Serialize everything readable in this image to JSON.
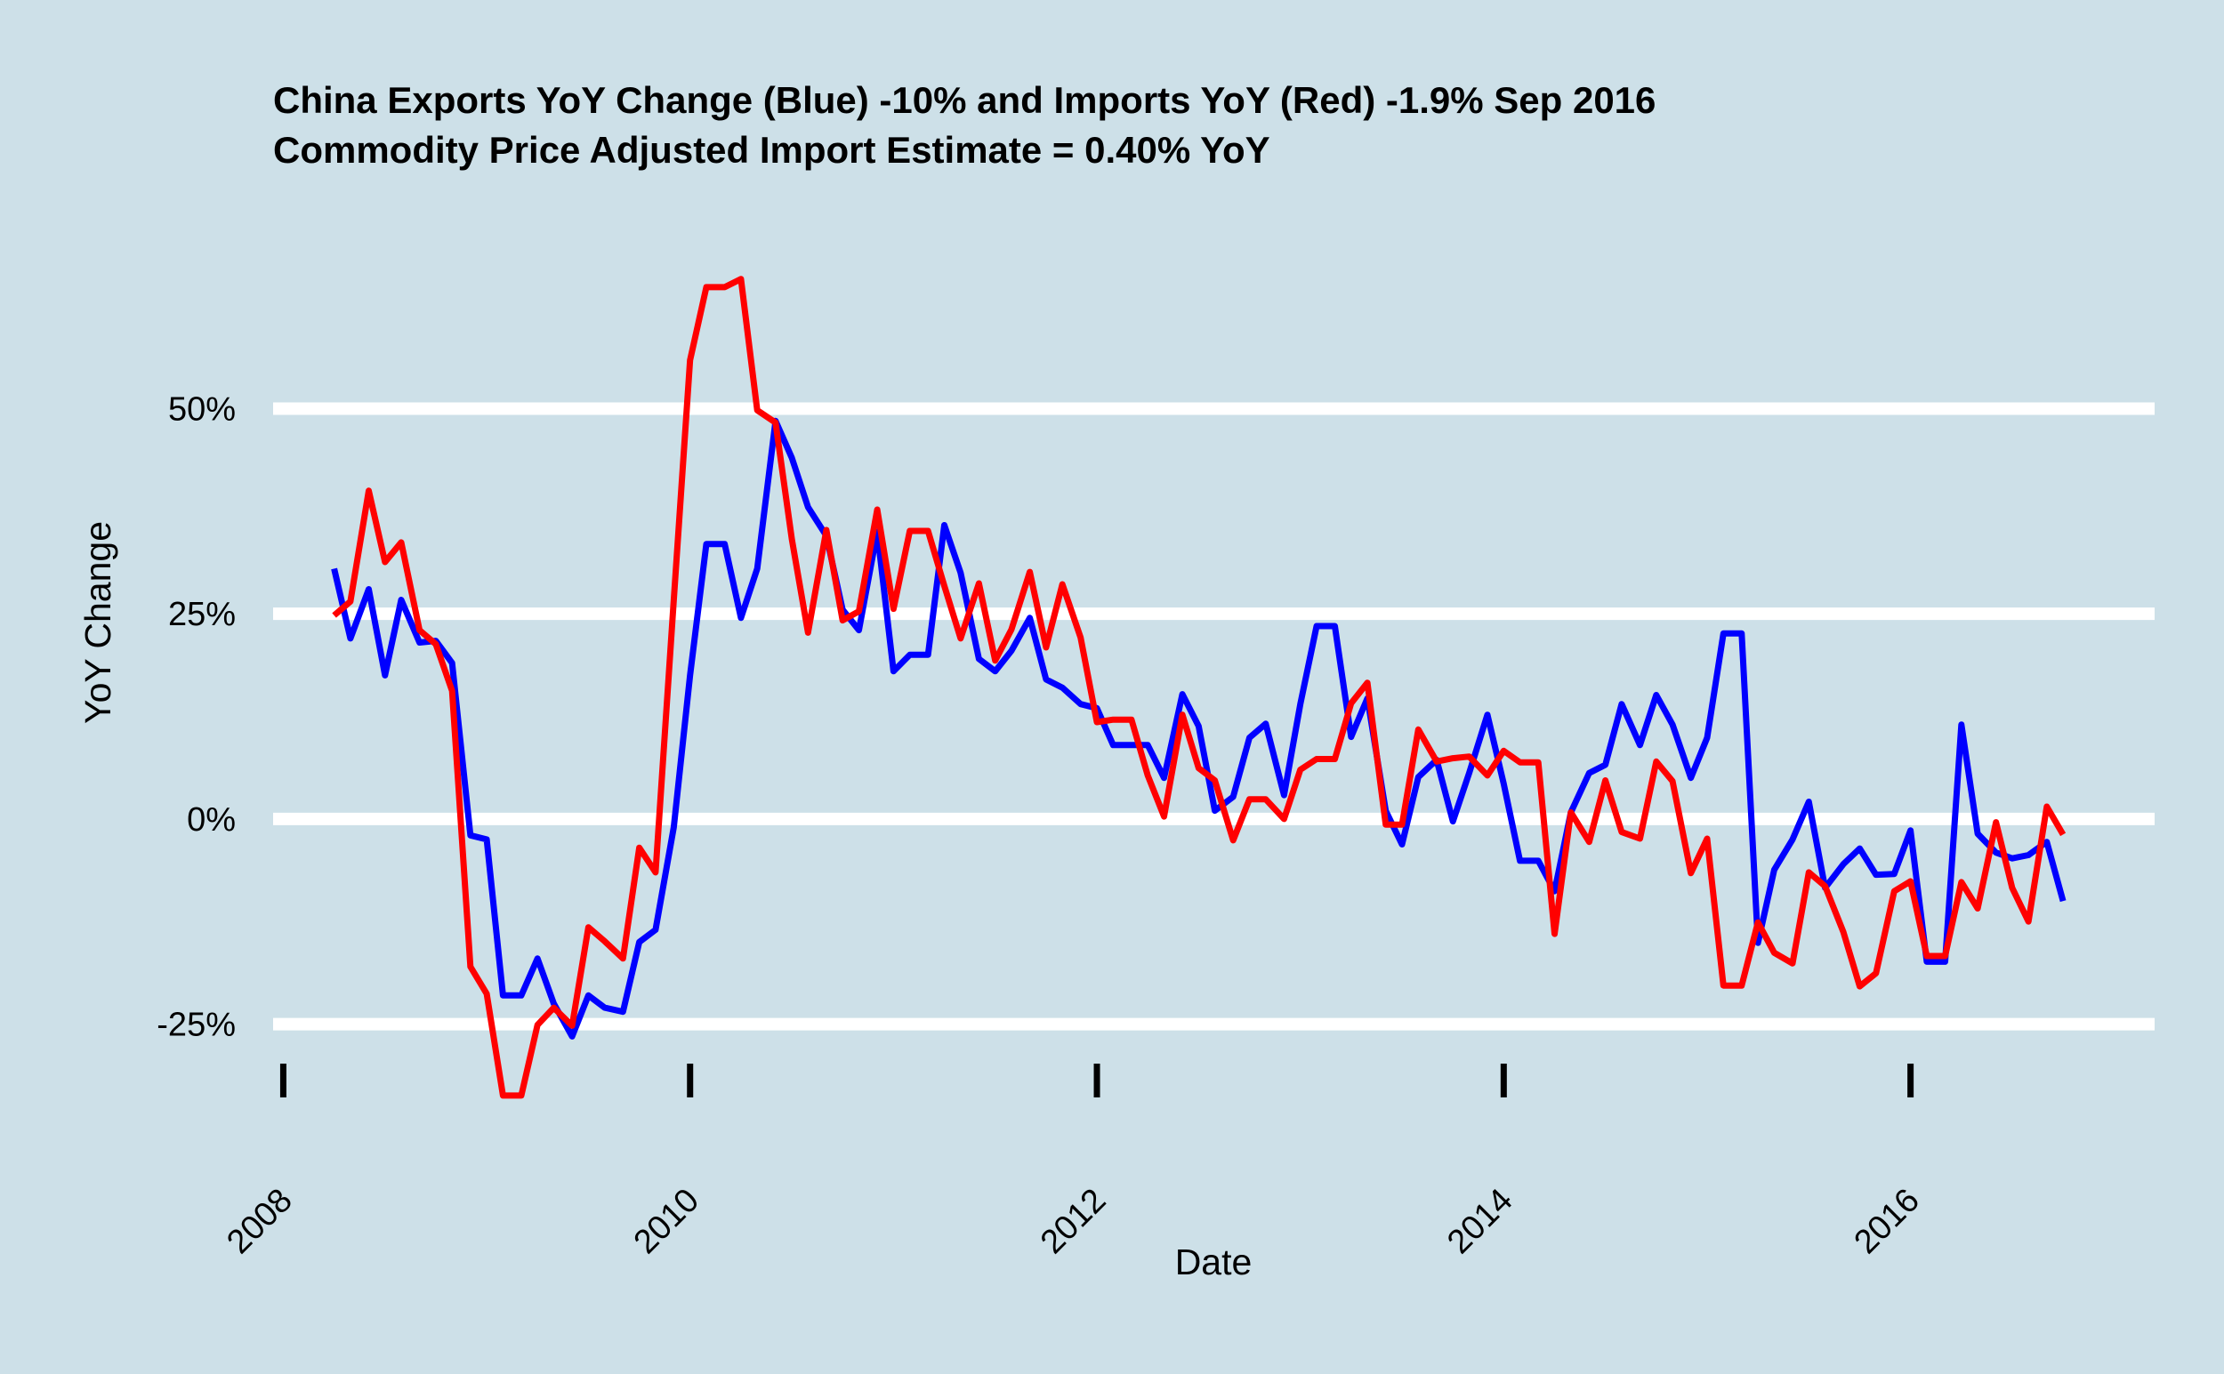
{
  "chart_data": {
    "type": "line",
    "title": "China Exports YoY Change (Blue) -10% and Imports YoY (Red) -1.9% Sep 2016",
    "subtitle": "Commodity Price Adjusted Import Estimate = 0.40% YoY",
    "xlabel": "Date",
    "ylabel": "YoY Change",
    "y_ticks": [
      {
        "value": 50,
        "label": "50%"
      },
      {
        "value": 25,
        "label": "25%"
      },
      {
        "value": 0,
        "label": "0%"
      },
      {
        "value": -25,
        "label": "-25%"
      }
    ],
    "x_ticks": [
      {
        "value": 2008,
        "label": "2008"
      },
      {
        "value": 2010,
        "label": "2010"
      },
      {
        "value": 2012,
        "label": "2012"
      },
      {
        "value": 2014,
        "label": "2014"
      },
      {
        "value": 2016,
        "label": "2016"
      }
    ],
    "xlim": [
      2007.95,
      2017.2
    ],
    "ylim": [
      -40,
      74
    ],
    "grid": "horizontal major",
    "legend": "none",
    "colors": {
      "background": "#cde0e8",
      "grid": "#ffffff",
      "exports": "#0000ff",
      "imports": "#ff0000"
    },
    "series": [
      {
        "color": "#0000ff",
        "points": [
          [
            2008.25,
            30.5
          ],
          [
            2008.33,
            22
          ],
          [
            2008.42,
            28
          ],
          [
            2008.5,
            17.5
          ],
          [
            2008.58,
            26.7
          ],
          [
            2008.67,
            21.5
          ],
          [
            2008.75,
            21.7
          ],
          [
            2008.83,
            19
          ],
          [
            2008.92,
            -2
          ],
          [
            2009.0,
            -2.5
          ],
          [
            2009.08,
            -21.5
          ],
          [
            2009.17,
            -21.5
          ],
          [
            2009.25,
            -17
          ],
          [
            2009.33,
            -22.5
          ],
          [
            2009.42,
            -26.5
          ],
          [
            2009.5,
            -21.5
          ],
          [
            2009.58,
            -23
          ],
          [
            2009.67,
            -23.5
          ],
          [
            2009.75,
            -15
          ],
          [
            2009.83,
            -13.5
          ],
          [
            2009.92,
            -1
          ],
          [
            2010.0,
            17.5
          ],
          [
            2010.08,
            33.5
          ],
          [
            2010.17,
            33.5
          ],
          [
            2010.25,
            24.5
          ],
          [
            2010.33,
            30.5
          ],
          [
            2010.42,
            48.5
          ],
          [
            2010.5,
            44
          ],
          [
            2010.58,
            38
          ],
          [
            2010.67,
            34.5
          ],
          [
            2010.75,
            25.5
          ],
          [
            2010.83,
            23
          ],
          [
            2010.92,
            35
          ],
          [
            2011.0,
            18
          ],
          [
            2011.08,
            20
          ],
          [
            2011.17,
            20
          ],
          [
            2011.25,
            35.8
          ],
          [
            2011.33,
            30
          ],
          [
            2011.42,
            19.5
          ],
          [
            2011.5,
            18
          ],
          [
            2011.58,
            20.5
          ],
          [
            2011.67,
            24.5
          ],
          [
            2011.75,
            17
          ],
          [
            2011.83,
            16
          ],
          [
            2011.92,
            14
          ],
          [
            2012.0,
            13.5
          ],
          [
            2012.08,
            9
          ],
          [
            2012.17,
            9
          ],
          [
            2012.25,
            9
          ],
          [
            2012.33,
            5
          ],
          [
            2012.42,
            15.2
          ],
          [
            2012.5,
            11.3
          ],
          [
            2012.58,
            1
          ],
          [
            2012.67,
            2.7
          ],
          [
            2012.75,
            9.9
          ],
          [
            2012.83,
            11.6
          ],
          [
            2012.92,
            2.9
          ],
          [
            2013.0,
            14
          ],
          [
            2013.08,
            23.5
          ],
          [
            2013.17,
            23.5
          ],
          [
            2013.25,
            10
          ],
          [
            2013.33,
            14.7
          ],
          [
            2013.42,
            1
          ],
          [
            2013.5,
            -3.1
          ],
          [
            2013.58,
            5.1
          ],
          [
            2013.67,
            7.2
          ],
          [
            2013.75,
            -0.3
          ],
          [
            2013.83,
            5.6
          ],
          [
            2013.92,
            12.7
          ],
          [
            2014.0,
            4.3
          ],
          [
            2014.08,
            -5.1
          ],
          [
            2014.17,
            -5.1
          ],
          [
            2014.25,
            -8.8
          ],
          [
            2014.33,
            0.8
          ],
          [
            2014.42,
            5.6
          ],
          [
            2014.5,
            6.6
          ],
          [
            2014.58,
            14
          ],
          [
            2014.67,
            9
          ],
          [
            2014.75,
            15.1
          ],
          [
            2014.83,
            11.5
          ],
          [
            2014.92,
            5
          ],
          [
            2015.0,
            9.9
          ],
          [
            2015.08,
            22.6
          ],
          [
            2015.17,
            22.6
          ],
          [
            2015.25,
            -15.1
          ],
          [
            2015.33,
            -6.2
          ],
          [
            2015.42,
            -2.5
          ],
          [
            2015.5,
            2.1
          ],
          [
            2015.58,
            -8.4
          ],
          [
            2015.67,
            -5.5
          ],
          [
            2015.75,
            -3.6
          ],
          [
            2015.83,
            -6.8
          ],
          [
            2015.92,
            -6.7
          ],
          [
            2016.0,
            -1.4
          ],
          [
            2016.08,
            -17.4
          ],
          [
            2016.17,
            -17.4
          ],
          [
            2016.25,
            11.5
          ],
          [
            2016.33,
            -1.8
          ],
          [
            2016.42,
            -4.1
          ],
          [
            2016.5,
            -4.8
          ],
          [
            2016.58,
            -4.4
          ],
          [
            2016.67,
            -2.8
          ],
          [
            2016.75,
            -10
          ]
        ]
      },
      {
        "color": "#ff0000",
        "points": [
          [
            2008.25,
            24.8
          ],
          [
            2008.33,
            26.5
          ],
          [
            2008.42,
            40
          ],
          [
            2008.5,
            31.3
          ],
          [
            2008.58,
            33.7
          ],
          [
            2008.67,
            23
          ],
          [
            2008.75,
            21.3
          ],
          [
            2008.83,
            15.6
          ],
          [
            2008.92,
            -18
          ],
          [
            2009.0,
            -21.3
          ],
          [
            2009.08,
            -33.7
          ],
          [
            2009.17,
            -33.7
          ],
          [
            2009.25,
            -25.1
          ],
          [
            2009.33,
            -23
          ],
          [
            2009.42,
            -25.2
          ],
          [
            2009.5,
            -13.2
          ],
          [
            2009.58,
            -14.9
          ],
          [
            2009.67,
            -17
          ],
          [
            2009.75,
            -3.5
          ],
          [
            2009.83,
            -6.5
          ],
          [
            2009.92,
            26.7
          ],
          [
            2010.0,
            55.9
          ],
          [
            2010.08,
            64.8
          ],
          [
            2010.17,
            64.8
          ],
          [
            2010.25,
            65.8
          ],
          [
            2010.33,
            49.8
          ],
          [
            2010.42,
            48.3
          ],
          [
            2010.5,
            34.1
          ],
          [
            2010.58,
            22.7
          ],
          [
            2010.67,
            35.2
          ],
          [
            2010.75,
            24.2
          ],
          [
            2010.83,
            25.3
          ],
          [
            2010.92,
            37.7
          ],
          [
            2011.0,
            25.6
          ],
          [
            2011.08,
            35.1
          ],
          [
            2011.17,
            35.1
          ],
          [
            2011.25,
            28.4
          ],
          [
            2011.33,
            22
          ],
          [
            2011.42,
            28.7
          ],
          [
            2011.5,
            19.3
          ],
          [
            2011.58,
            23.1
          ],
          [
            2011.67,
            30.1
          ],
          [
            2011.75,
            20.9
          ],
          [
            2011.83,
            28.6
          ],
          [
            2011.92,
            22.1
          ],
          [
            2012.0,
            11.8
          ],
          [
            2012.08,
            12.1
          ],
          [
            2012.17,
            12.1
          ],
          [
            2012.25,
            5.3
          ],
          [
            2012.33,
            0.3
          ],
          [
            2012.42,
            12.7
          ],
          [
            2012.5,
            6.2
          ],
          [
            2012.58,
            4.7
          ],
          [
            2012.67,
            -2.6
          ],
          [
            2012.75,
            2.4
          ],
          [
            2012.83,
            2.4
          ],
          [
            2012.92,
            0
          ],
          [
            2013.0,
            6
          ],
          [
            2013.08,
            7.3
          ],
          [
            2013.17,
            7.3
          ],
          [
            2013.25,
            14.1
          ],
          [
            2013.33,
            16.6
          ],
          [
            2013.42,
            -0.7
          ],
          [
            2013.5,
            -0.7
          ],
          [
            2013.58,
            10.9
          ],
          [
            2013.67,
            7
          ],
          [
            2013.75,
            7.4
          ],
          [
            2013.83,
            7.6
          ],
          [
            2013.92,
            5.3
          ],
          [
            2014.0,
            8.3
          ],
          [
            2014.08,
            6.9
          ],
          [
            2014.17,
            6.9
          ],
          [
            2014.25,
            -14
          ],
          [
            2014.33,
            0.8
          ],
          [
            2014.42,
            -2.8
          ],
          [
            2014.5,
            4.7
          ],
          [
            2014.58,
            -1.6
          ],
          [
            2014.67,
            -2.4
          ],
          [
            2014.75,
            7
          ],
          [
            2014.83,
            4.6
          ],
          [
            2014.92,
            -6.6
          ],
          [
            2015.0,
            -2.4
          ],
          [
            2015.08,
            -20.3
          ],
          [
            2015.17,
            -20.3
          ],
          [
            2015.25,
            -12.6
          ],
          [
            2015.33,
            -16.3
          ],
          [
            2015.42,
            -17.6
          ],
          [
            2015.5,
            -6.5
          ],
          [
            2015.58,
            -8.2
          ],
          [
            2015.67,
            -13.8
          ],
          [
            2015.75,
            -20.4
          ],
          [
            2015.83,
            -18.8
          ],
          [
            2015.92,
            -8.8
          ],
          [
            2016.0,
            -7.6
          ],
          [
            2016.08,
            -16.7
          ],
          [
            2016.17,
            -16.7
          ],
          [
            2016.25,
            -7.7
          ],
          [
            2016.33,
            -10.9
          ],
          [
            2016.42,
            -0.4
          ],
          [
            2016.5,
            -8.4
          ],
          [
            2016.58,
            -12.5
          ],
          [
            2016.67,
            1.5
          ],
          [
            2016.75,
            -1.9
          ]
        ]
      }
    ]
  }
}
